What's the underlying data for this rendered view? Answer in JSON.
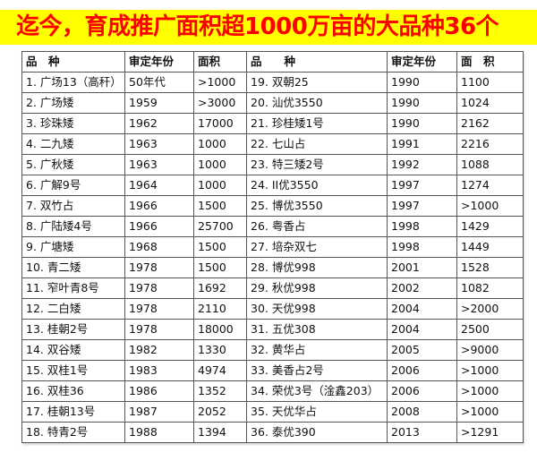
{
  "banner": {
    "title": "迄今，育成推广面积超1000万亩的大品种36个",
    "background": "#ffff00",
    "text_color": "#ff0000"
  },
  "table": {
    "headers": {
      "left": [
        "品　种",
        "审定年份",
        "面积"
      ],
      "right": [
        "品　　种",
        "审定年份",
        "面　积"
      ]
    },
    "rows": [
      {
        "left": [
          "1. 广场13（高秆）",
          "50年代",
          ">1000"
        ],
        "right": [
          "19. 双朝25",
          "1990",
          "1100"
        ]
      },
      {
        "left": [
          "2. 广场矮",
          "1959",
          ">3000"
        ],
        "right": [
          "20. 汕优3550",
          "1990",
          "1024"
        ]
      },
      {
        "left": [
          "3. 珍珠矮",
          "1962",
          "17000"
        ],
        "right": [
          "21.  珍桂矮1号",
          "1990",
          "2162"
        ]
      },
      {
        "left": [
          "4. 二九矮",
          "1963",
          "1000"
        ],
        "right": [
          "22. 七山占",
          "1991",
          "2216"
        ]
      },
      {
        "left": [
          "5. 广秋矮",
          "1963",
          "1000"
        ],
        "right": [
          "23. 特三矮2号",
          "1992",
          "1088"
        ]
      },
      {
        "left": [
          "6. 广解9号",
          "1964",
          "1000"
        ],
        "right": [
          "24. II优3550",
          "1997",
          "1274"
        ]
      },
      {
        "left": [
          "7. 双竹占",
          "1966",
          "1500"
        ],
        "right": [
          "25. 博优3550",
          "1997",
          ">1000"
        ]
      },
      {
        "left": [
          "8. 广陆矮4号",
          "1966",
          "25700"
        ],
        "right": [
          "26. 粤香占",
          "1998",
          "1429"
        ]
      },
      {
        "left": [
          "9. 广塘矮",
          "1968",
          "1500"
        ],
        "right": [
          "27. 培杂双七",
          "1998",
          "1449"
        ]
      },
      {
        "left": [
          "10. 青二矮",
          "1978",
          "1500"
        ],
        "right": [
          "28. 博优998",
          "2001",
          "1528"
        ]
      },
      {
        "left": [
          "11. 窄叶青8号",
          "1978",
          "1692"
        ],
        "right": [
          "29. 秋优998",
          "2002",
          "1082"
        ]
      },
      {
        "left": [
          "12. 二白矮",
          "1978",
          "2110"
        ],
        "right": [
          "30. 天优998",
          "2004",
          ">2000"
        ]
      },
      {
        "left": [
          "13. 桂朝2号",
          "1978",
          "18000"
        ],
        "right": [
          "31. 五优308",
          "2004",
          "2500"
        ]
      },
      {
        "left": [
          "14. 双谷矮",
          "1982",
          "1330"
        ],
        "right": [
          "32. 黄华占",
          "2005",
          ">9000"
        ]
      },
      {
        "left": [
          "15. 双桂1号",
          "1983",
          "4974"
        ],
        "right": [
          "33. 美香占2号",
          "2006",
          ">1000"
        ]
      },
      {
        "left": [
          "16. 双桂36",
          "1986",
          "1352"
        ],
        "right": [
          "34. 荣优3号（淦鑫203）",
          "2006",
          ">1000"
        ]
      },
      {
        "left": [
          "17. 桂朝13号",
          "1987",
          "2052"
        ],
        "right": [
          "35. 天优华占",
          "2008",
          ">1000"
        ]
      },
      {
        "left": [
          "18. 特青2号",
          "1988",
          "1394"
        ],
        "right": [
          "36. 泰优390",
          "2013",
          ">1291"
        ]
      }
    ],
    "separator_color": "#22bb44"
  }
}
